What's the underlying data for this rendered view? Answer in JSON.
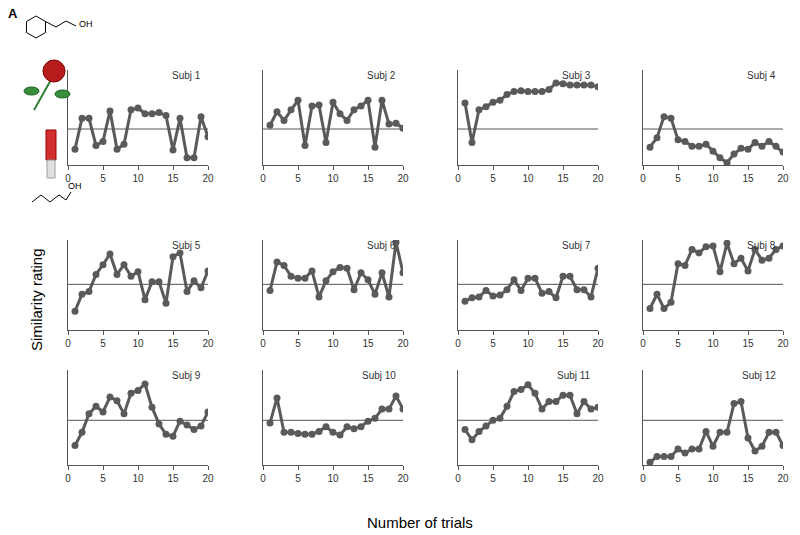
{
  "panel_label": "A",
  "x_label": "Number of trials",
  "y_label": "Similarity rating",
  "structure_labels": [
    "OH",
    "OH"
  ],
  "chart_data": [
    {
      "type": "line",
      "title": "Subj 1",
      "x": [
        1,
        2,
        3,
        4,
        5,
        6,
        7,
        8,
        9,
        10,
        11,
        12,
        13,
        14,
        15,
        16,
        17,
        18,
        19,
        20
      ],
      "values": [
        -0.7,
        0.37,
        0.37,
        -0.57,
        -0.43,
        0.63,
        -0.7,
        -0.53,
        0.67,
        0.73,
        0.53,
        0.53,
        0.57,
        0.47,
        -0.73,
        0.37,
        -1.0,
        -1.0,
        0.43,
        -0.27
      ],
      "xlim": [
        0,
        20
      ],
      "xticks": [
        0,
        5,
        10,
        15,
        20
      ],
      "ylim": [
        -1.25,
        2.05
      ],
      "hline": 0,
      "tick_labels": "x",
      "color": "#5a5a5a",
      "marker": "circle"
    },
    {
      "type": "line",
      "title": "Subj 2",
      "x": [
        1,
        2,
        3,
        4,
        5,
        6,
        7,
        8,
        9,
        10,
        11,
        12,
        13,
        14,
        15,
        16,
        17,
        18,
        19,
        20
      ],
      "values": [
        0.13,
        0.6,
        0.3,
        0.67,
        1.0,
        -0.57,
        0.8,
        0.83,
        -0.47,
        0.93,
        0.53,
        0.3,
        0.67,
        0.8,
        1.0,
        -0.63,
        1.0,
        0.17,
        0.2,
        0.03
      ],
      "xlim": [
        0,
        20
      ],
      "xticks": [
        0,
        5,
        10,
        15,
        20
      ],
      "ylim": [
        -1.25,
        2.05
      ],
      "hline": 0,
      "tick_labels": "x",
      "color": "#5a5a5a",
      "marker": "circle"
    },
    {
      "type": "line",
      "title": "Subj 3",
      "x": [
        1,
        2,
        3,
        4,
        5,
        6,
        7,
        8,
        9,
        10,
        11,
        12,
        13,
        14,
        15,
        16,
        17,
        18,
        19,
        20
      ],
      "values": [
        0.9,
        -0.47,
        0.67,
        0.77,
        0.93,
        1.0,
        1.2,
        1.3,
        1.33,
        1.3,
        1.3,
        1.3,
        1.37,
        1.6,
        1.57,
        1.53,
        1.53,
        1.53,
        1.53,
        1.47
      ],
      "xlim": [
        0,
        20
      ],
      "xticks": [
        0,
        5,
        10,
        15,
        20
      ],
      "ylim": [
        -1.25,
        2.05
      ],
      "hline": 0,
      "tick_labels": "x",
      "color": "#5a5a5a",
      "marker": "circle"
    },
    {
      "type": "line",
      "title": "Subj 4",
      "x": [
        1,
        2,
        3,
        4,
        5,
        6,
        7,
        8,
        9,
        10,
        11,
        12,
        13,
        14,
        15,
        16,
        17,
        18,
        19,
        20
      ],
      "values": [
        -0.63,
        -0.3,
        0.43,
        0.37,
        -0.37,
        -0.43,
        -0.6,
        -0.6,
        -0.53,
        -0.77,
        -1.0,
        -1.17,
        -0.87,
        -0.67,
        -0.7,
        -0.47,
        -0.6,
        -0.43,
        -0.6,
        -0.8
      ],
      "xlim": [
        0,
        20
      ],
      "xticks": [
        0,
        5,
        10,
        15,
        20
      ],
      "ylim": [
        -1.25,
        2.05
      ],
      "hline": 0,
      "tick_labels": "x",
      "color": "#5a5a5a",
      "marker": "circle"
    },
    {
      "type": "line",
      "title": "Subj 5",
      "x": [
        1,
        2,
        3,
        4,
        5,
        6,
        7,
        8,
        9,
        10,
        11,
        12,
        13,
        14,
        15,
        16,
        17,
        18,
        19,
        20
      ],
      "values": [
        -1.0,
        -0.37,
        -0.27,
        0.37,
        0.73,
        1.13,
        0.37,
        0.73,
        0.3,
        0.47,
        -0.57,
        0.1,
        0.1,
        -0.7,
        1.03,
        1.17,
        -0.27,
        0.13,
        -0.13,
        0.5
      ],
      "xlim": [
        0,
        20
      ],
      "xticks": [
        0,
        5,
        10,
        15,
        20
      ],
      "ylim": [
        -1.7,
        1.65
      ],
      "hline": 0,
      "tick_labels": "x",
      "color": "#5a5a5a",
      "marker": "circle"
    },
    {
      "type": "line",
      "title": "Subj 6",
      "x": [
        1,
        2,
        3,
        4,
        5,
        6,
        7,
        8,
        9,
        10,
        11,
        12,
        13,
        14,
        15,
        16,
        17,
        18,
        19,
        20
      ],
      "values": [
        -0.23,
        0.83,
        0.7,
        0.3,
        0.23,
        0.23,
        0.5,
        -0.47,
        0.13,
        0.47,
        0.63,
        0.6,
        -0.2,
        0.43,
        0.17,
        -0.37,
        0.43,
        -0.47,
        1.57,
        0.43
      ],
      "xlim": [
        0,
        20
      ],
      "xticks": [
        0,
        5,
        10,
        15,
        20
      ],
      "ylim": [
        -1.7,
        1.65
      ],
      "hline": 0,
      "tick_labels": "x",
      "color": "#5a5a5a",
      "marker": "circle"
    },
    {
      "type": "line",
      "title": "Subj 7",
      "x": [
        1,
        2,
        3,
        4,
        5,
        6,
        7,
        8,
        9,
        10,
        11,
        12,
        13,
        14,
        15,
        16,
        17,
        18,
        19,
        20
      ],
      "values": [
        -0.63,
        -0.5,
        -0.47,
        -0.23,
        -0.43,
        -0.4,
        -0.2,
        0.17,
        -0.23,
        0.23,
        0.23,
        -0.33,
        -0.27,
        -0.5,
        0.3,
        0.3,
        -0.2,
        -0.2,
        -0.47,
        0.6
      ],
      "xlim": [
        0,
        20
      ],
      "xticks": [
        0,
        5,
        10,
        15,
        20
      ],
      "ylim": [
        -1.7,
        1.65
      ],
      "hline": 0,
      "tick_labels": "x",
      "color": "#5a5a5a",
      "marker": "circle"
    },
    {
      "type": "line",
      "title": "Subj 8",
      "x": [
        1,
        2,
        3,
        4,
        5,
        6,
        7,
        8,
        9,
        10,
        11,
        12,
        13,
        14,
        15,
        16,
        17,
        18,
        19,
        20
      ],
      "values": [
        -0.9,
        -0.37,
        -0.9,
        -0.67,
        0.77,
        0.7,
        1.3,
        1.17,
        1.4,
        1.43,
        0.47,
        1.53,
        0.77,
        0.97,
        0.5,
        1.3,
        0.9,
        0.97,
        1.3,
        1.43
      ],
      "xlim": [
        0,
        20
      ],
      "xticks": [
        0,
        5,
        10,
        15,
        20
      ],
      "ylim": [
        -1.7,
        1.65
      ],
      "hline": 0,
      "tick_labels": "x",
      "color": "#5a5a5a",
      "marker": "circle"
    },
    {
      "type": "line",
      "title": "Subj 9",
      "x": [
        1,
        2,
        3,
        4,
        5,
        6,
        7,
        8,
        9,
        10,
        11,
        12,
        13,
        14,
        15,
        16,
        17,
        18,
        19,
        20
      ],
      "values": [
        -0.9,
        -0.43,
        0.23,
        0.5,
        0.3,
        0.83,
        0.7,
        0.23,
        0.97,
        1.07,
        1.3,
        0.47,
        -0.13,
        -0.5,
        -0.57,
        -0.03,
        -0.17,
        -0.33,
        -0.2,
        0.3
      ],
      "xlim": [
        0,
        20
      ],
      "xticks": [
        0,
        5,
        10,
        15,
        20
      ],
      "ylim": [
        -1.6,
        1.8
      ],
      "hline": 0,
      "tick_labels": "x",
      "color": "#5a5a5a",
      "marker": "circle"
    },
    {
      "type": "line",
      "title": "Subj 10",
      "x": [
        1,
        2,
        3,
        4,
        5,
        6,
        7,
        8,
        9,
        10,
        11,
        12,
        13,
        14,
        15,
        16,
        17,
        18,
        19,
        20
      ],
      "values": [
        -0.1,
        0.8,
        -0.43,
        -0.43,
        -0.47,
        -0.5,
        -0.5,
        -0.4,
        -0.23,
        -0.43,
        -0.53,
        -0.23,
        -0.3,
        -0.23,
        -0.03,
        0.07,
        0.4,
        0.4,
        0.87,
        0.4
      ],
      "xlim": [
        0,
        20
      ],
      "xticks": [
        0,
        5,
        10,
        15,
        20
      ],
      "ylim": [
        -1.6,
        1.8
      ],
      "hline": 0,
      "tick_labels": "x",
      "color": "#5a5a5a",
      "marker": "circle"
    },
    {
      "type": "line",
      "title": "Subj 11",
      "x": [
        1,
        2,
        3,
        4,
        5,
        6,
        7,
        8,
        9,
        10,
        11,
        12,
        13,
        14,
        15,
        16,
        17,
        18,
        19,
        20
      ],
      "values": [
        -0.33,
        -0.7,
        -0.4,
        -0.2,
        0,
        0.07,
        0.5,
        1.03,
        1.1,
        1.27,
        0.97,
        0.4,
        0.67,
        0.67,
        0.9,
        0.9,
        0.23,
        0.67,
        0.4,
        0.47
      ],
      "xlim": [
        0,
        20
      ],
      "xticks": [
        0,
        5,
        10,
        15,
        20
      ],
      "ylim": [
        -1.6,
        1.8
      ],
      "hline": 0,
      "tick_labels": "x",
      "color": "#5a5a5a",
      "marker": "circle"
    },
    {
      "type": "line",
      "title": "Subj 12",
      "x": [
        1,
        2,
        3,
        4,
        5,
        6,
        7,
        8,
        9,
        10,
        11,
        12,
        13,
        14,
        15,
        16,
        17,
        18,
        19,
        20
      ],
      "values": [
        -1.5,
        -1.3,
        -1.3,
        -1.3,
        -1.03,
        -1.17,
        -1.03,
        -1.03,
        -0.4,
        -0.93,
        -0.43,
        -0.43,
        0.6,
        0.67,
        -0.63,
        -1.1,
        -0.93,
        -0.43,
        -0.43,
        -0.9
      ],
      "xlim": [
        0,
        20
      ],
      "xticks": [
        0,
        5,
        10,
        15,
        20
      ],
      "ylim": [
        -1.6,
        1.8
      ],
      "hline": 0,
      "tick_labels": "x",
      "color": "#5a5a5a",
      "marker": "circle"
    }
  ]
}
